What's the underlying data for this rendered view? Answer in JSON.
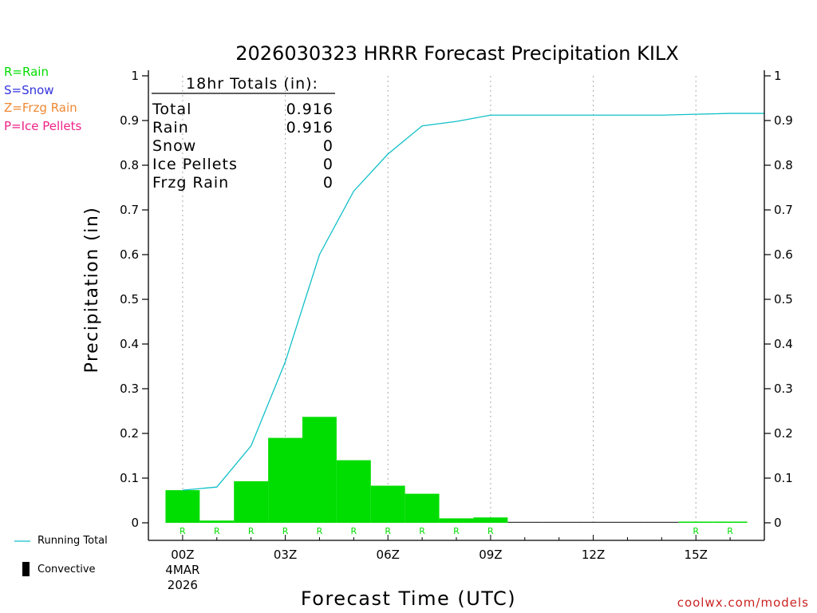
{
  "colors": {
    "rain": "#00dd00",
    "snow": "#3333dd",
    "frzg_rain": "#ee8833",
    "ice_pellets": "#ee2288",
    "running_total": "#11c0c8",
    "grid": "#aaaaaa",
    "axis": "#000000"
  },
  "ptype_legend": [
    {
      "key": "rain",
      "label": "R=Rain"
    },
    {
      "key": "snow",
      "label": "S=Snow"
    },
    {
      "key": "frzg_rain",
      "label": "Z=Frzg Rain"
    },
    {
      "key": "ice_pellets",
      "label": "P=Ice Pellets"
    }
  ],
  "series_legend": {
    "running_total": "Running Total",
    "convective": "Convective"
  },
  "watermark": "coolwx.com/models",
  "totals_box": {
    "heading": "18hr Totals (in):",
    "rows": [
      {
        "label": "Total",
        "value": "0.916"
      },
      {
        "label": "Rain",
        "value": "0.916"
      },
      {
        "label": "Snow",
        "value": "0"
      },
      {
        "label": "Ice Pellets",
        "value": "0"
      },
      {
        "label": "Frzg Rain",
        "value": "0"
      }
    ]
  },
  "chart_data": {
    "type": "bar",
    "title": "2026030323 HRRR Forecast Precipitation KILX",
    "xlabel": "Forecast Time (UTC)",
    "ylabel": "Precipitation (in)",
    "ylim": [
      0,
      1
    ],
    "y_ticks": [
      "0",
      "0.1",
      "0.2",
      "0.3",
      "0.4",
      "0.5",
      "0.6",
      "0.7",
      "0.8",
      "0.9",
      "1"
    ],
    "x_ticks": [
      {
        "hour": 0,
        "label": "00Z",
        "sub1": "4MAR",
        "sub2": "2026"
      },
      {
        "hour": 3,
        "label": "03Z"
      },
      {
        "hour": 6,
        "label": "06Z"
      },
      {
        "hour": 9,
        "label": "09Z"
      },
      {
        "hour": 12,
        "label": "12Z"
      },
      {
        "hour": 15,
        "label": "15Z"
      }
    ],
    "grid": "vertical dotted at labeled hours",
    "xlim_hours": [
      -1,
      17
    ],
    "hourly": {
      "hours": [
        0,
        1,
        2,
        3,
        4,
        5,
        6,
        7,
        8,
        9,
        10,
        11,
        12,
        13,
        14,
        15,
        16
      ],
      "values": [
        0.073,
        0.005,
        0.093,
        0.19,
        0.237,
        0.14,
        0.083,
        0.065,
        0.01,
        0.012,
        0.0,
        0.0,
        0.0,
        0.0,
        0.0,
        0.002,
        0.002
      ],
      "ptype": [
        "R",
        "R",
        "R",
        "R",
        "R",
        "R",
        "R",
        "R",
        "R",
        "R",
        "",
        "",
        "",
        "",
        "",
        "R",
        "R"
      ]
    },
    "running_total": {
      "hours": [
        0,
        1,
        2,
        3,
        4,
        5,
        6,
        7,
        8,
        9,
        10,
        11,
        12,
        13,
        14,
        15,
        16,
        17
      ],
      "values": [
        0.073,
        0.08,
        0.172,
        0.36,
        0.6,
        0.742,
        0.825,
        0.888,
        0.898,
        0.912,
        0.912,
        0.912,
        0.912,
        0.912,
        0.912,
        0.914,
        0.916,
        0.916
      ]
    }
  }
}
